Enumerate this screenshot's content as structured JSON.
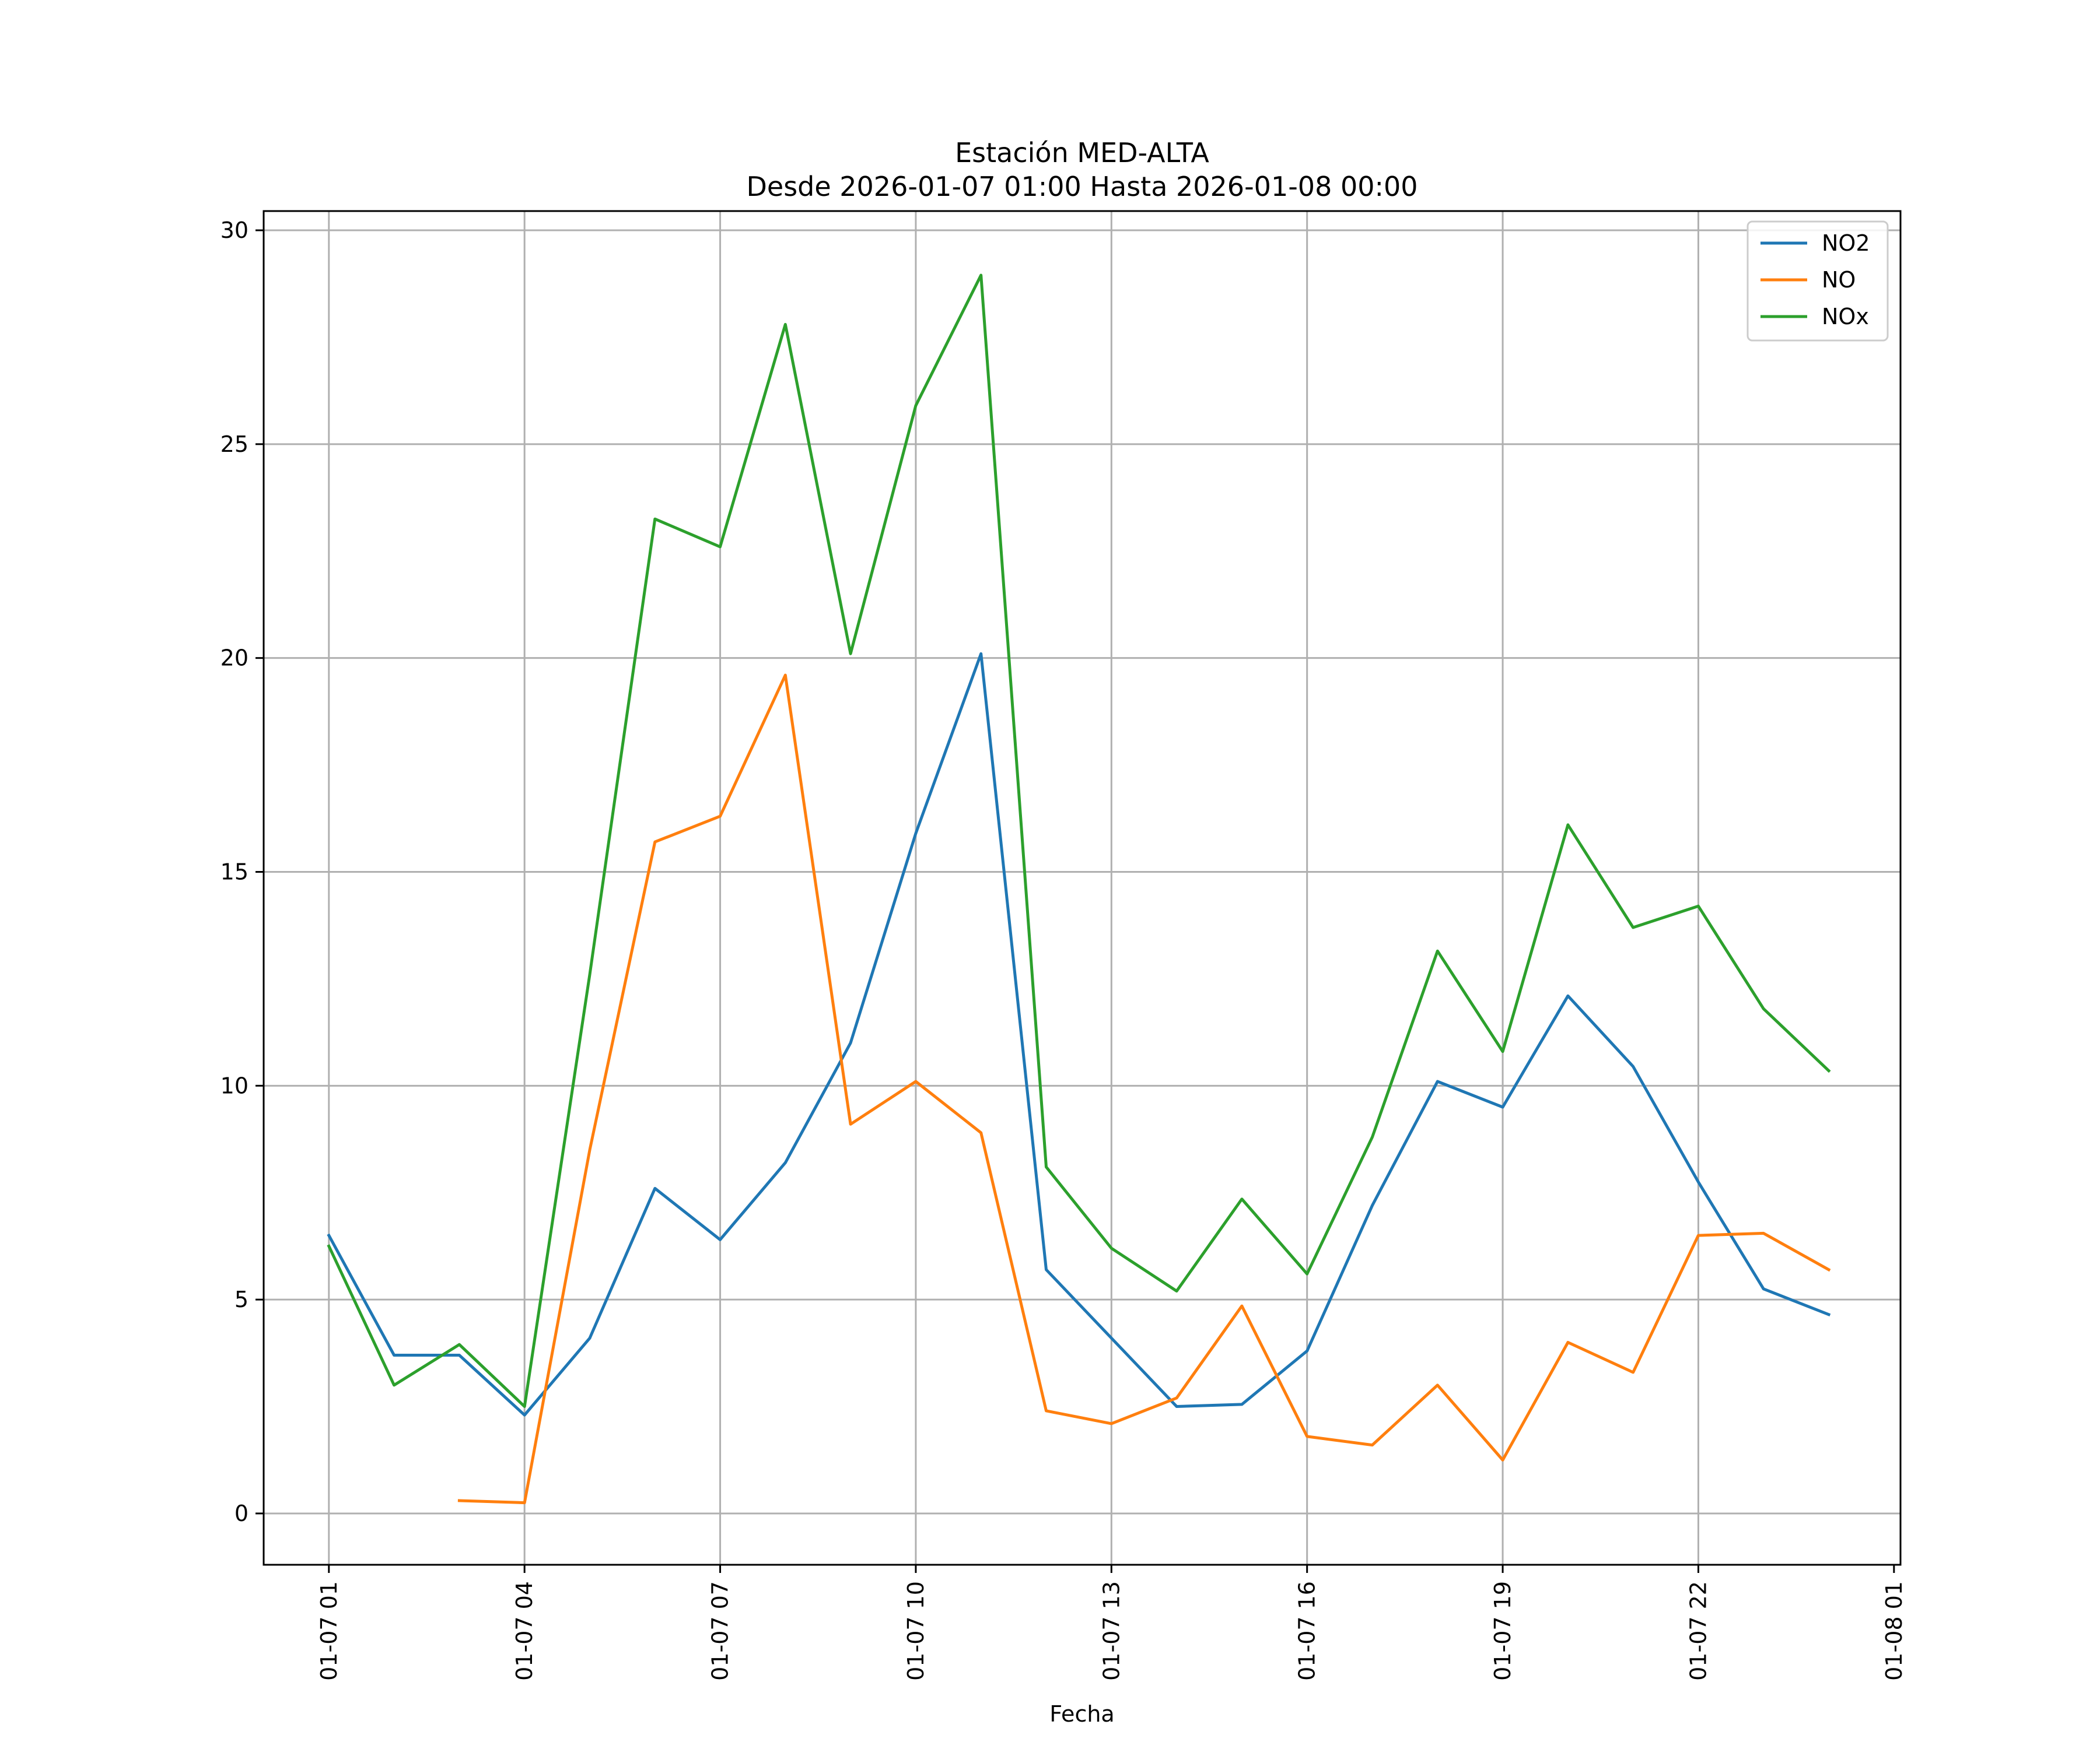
{
  "chart_data": {
    "type": "line",
    "title": "Estación MED-ALTA",
    "subtitle": "Desde 2026-01-07 01:00 Hasta 2026-01-08 00:00",
    "xlabel": "Fecha",
    "ylabel": "",
    "x_hours": [
      1,
      2,
      3,
      4,
      5,
      6,
      7,
      8,
      9,
      10,
      11,
      12,
      13,
      14,
      15,
      16,
      17,
      18,
      19,
      20,
      21,
      22,
      23,
      24
    ],
    "xlim": [
      0.0,
      25.1
    ],
    "ylim": [
      -1.2,
      30.45
    ],
    "xticks": [
      {
        "hour": 1,
        "label": "01-07 01"
      },
      {
        "hour": 4,
        "label": "01-07 04"
      },
      {
        "hour": 7,
        "label": "01-07 07"
      },
      {
        "hour": 10,
        "label": "01-07 10"
      },
      {
        "hour": 13,
        "label": "01-07 13"
      },
      {
        "hour": 16,
        "label": "01-07 16"
      },
      {
        "hour": 19,
        "label": "01-07 19"
      },
      {
        "hour": 22,
        "label": "01-07 22"
      },
      {
        "hour": 25,
        "label": "01-08 01"
      }
    ],
    "yticks": [
      {
        "value": 0,
        "label": "0"
      },
      {
        "value": 5,
        "label": "5"
      },
      {
        "value": 10,
        "label": "10"
      },
      {
        "value": 15,
        "label": "15"
      },
      {
        "value": 20,
        "label": "20"
      },
      {
        "value": 25,
        "label": "25"
      },
      {
        "value": 30,
        "label": "30"
      }
    ],
    "grid": true,
    "legend_position": "top-right",
    "series": [
      {
        "name": "NO2",
        "color": "#1f77b4",
        "values": [
          6.5,
          3.7,
          3.7,
          2.3,
          4.1,
          7.6,
          6.4,
          8.2,
          11.0,
          15.9,
          20.1,
          5.7,
          4.1,
          2.5,
          2.55,
          3.8,
          7.2,
          10.1,
          9.5,
          12.1,
          10.45,
          7.75,
          5.25,
          4.65
        ]
      },
      {
        "name": "NO",
        "color": "#ff7f0e",
        "values": [
          null,
          null,
          0.3,
          0.25,
          8.5,
          15.7,
          16.3,
          19.6,
          9.1,
          10.1,
          8.9,
          2.4,
          2.1,
          2.7,
          4.85,
          1.8,
          1.6,
          3.0,
          1.25,
          4.0,
          3.3,
          6.5,
          6.55,
          5.7
        ]
      },
      {
        "name": "NOx",
        "color": "#2ca02c",
        "values": [
          6.25,
          3.0,
          3.95,
          2.5,
          12.6,
          23.25,
          22.6,
          27.8,
          20.1,
          25.9,
          28.95,
          8.1,
          6.2,
          5.2,
          7.35,
          5.6,
          8.8,
          13.15,
          10.8,
          16.1,
          13.7,
          14.2,
          11.8,
          10.35
        ]
      }
    ]
  }
}
